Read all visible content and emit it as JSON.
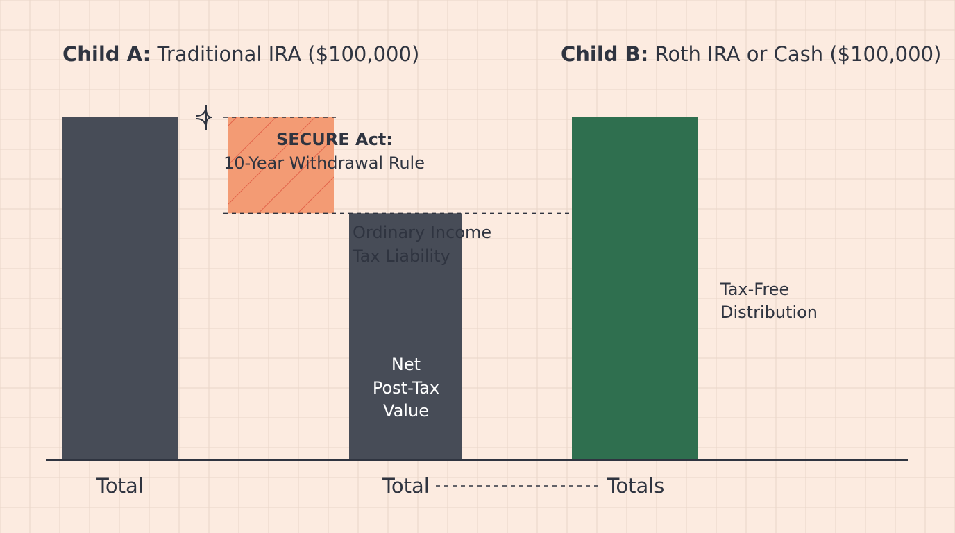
{
  "chart_data": {
    "type": "bar",
    "colors": {
      "background": "#fcebe0",
      "grid": "#e9d6c8",
      "traditional": "#474c57",
      "tax": "#f39b74",
      "tax_hatch": "#e2634a",
      "roth": "#2f6f4f",
      "text": "#2f3440"
    },
    "grid": true,
    "child_a": {
      "title_bold": "Child A:",
      "title_rest": " Traditional IRA ($100,000)",
      "total_value": 100000,
      "tax_liability_share": 0.28,
      "total_label": "Total",
      "net_label": "Total",
      "brace_heading": "SECURE Act:",
      "brace_text": "10-Year Withdrawal Rule",
      "tax_lines": [
        "Ordinary Income",
        "Tax Liability"
      ],
      "net_bar_lines": [
        "Net",
        "Post-Tax",
        "Value"
      ]
    },
    "child_b": {
      "title_bold": "Child B:",
      "title_rest": " Roth IRA or Cash ($100,000)",
      "total_value": 100000,
      "total_label": "Totals",
      "note_lines": [
        "Tax-Free",
        "Distribution"
      ]
    }
  }
}
